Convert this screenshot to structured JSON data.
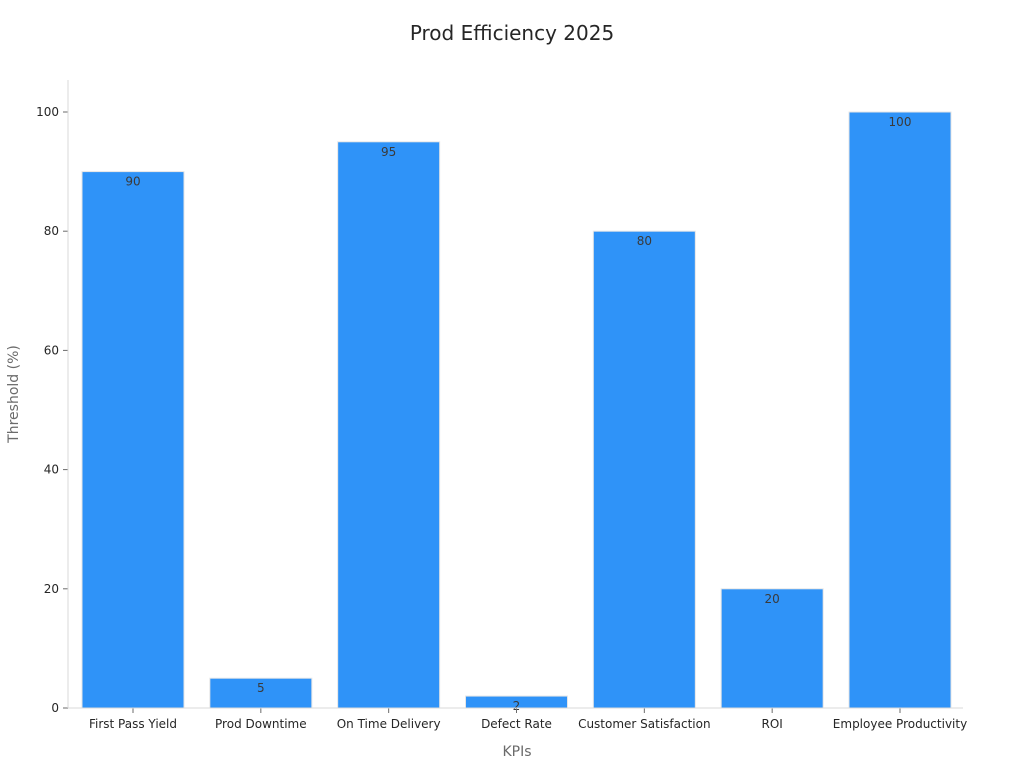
{
  "chart_data": {
    "type": "bar",
    "title": "Prod Efficiency 2025",
    "xlabel": "KPIs",
    "ylabel": "Threshold (%)",
    "categories": [
      "First Pass Yield",
      "Prod Downtime",
      "On Time Delivery",
      "Defect Rate",
      "Customer Satisfaction",
      "ROI",
      "Employee Productivity"
    ],
    "values": [
      90,
      5,
      95,
      2,
      80,
      20,
      100
    ],
    "ylim": [
      0,
      105
    ],
    "yticks": [
      0,
      20,
      40,
      60,
      80,
      100
    ],
    "bar_color": "#2f93f8",
    "grid": false,
    "legend": false
  }
}
